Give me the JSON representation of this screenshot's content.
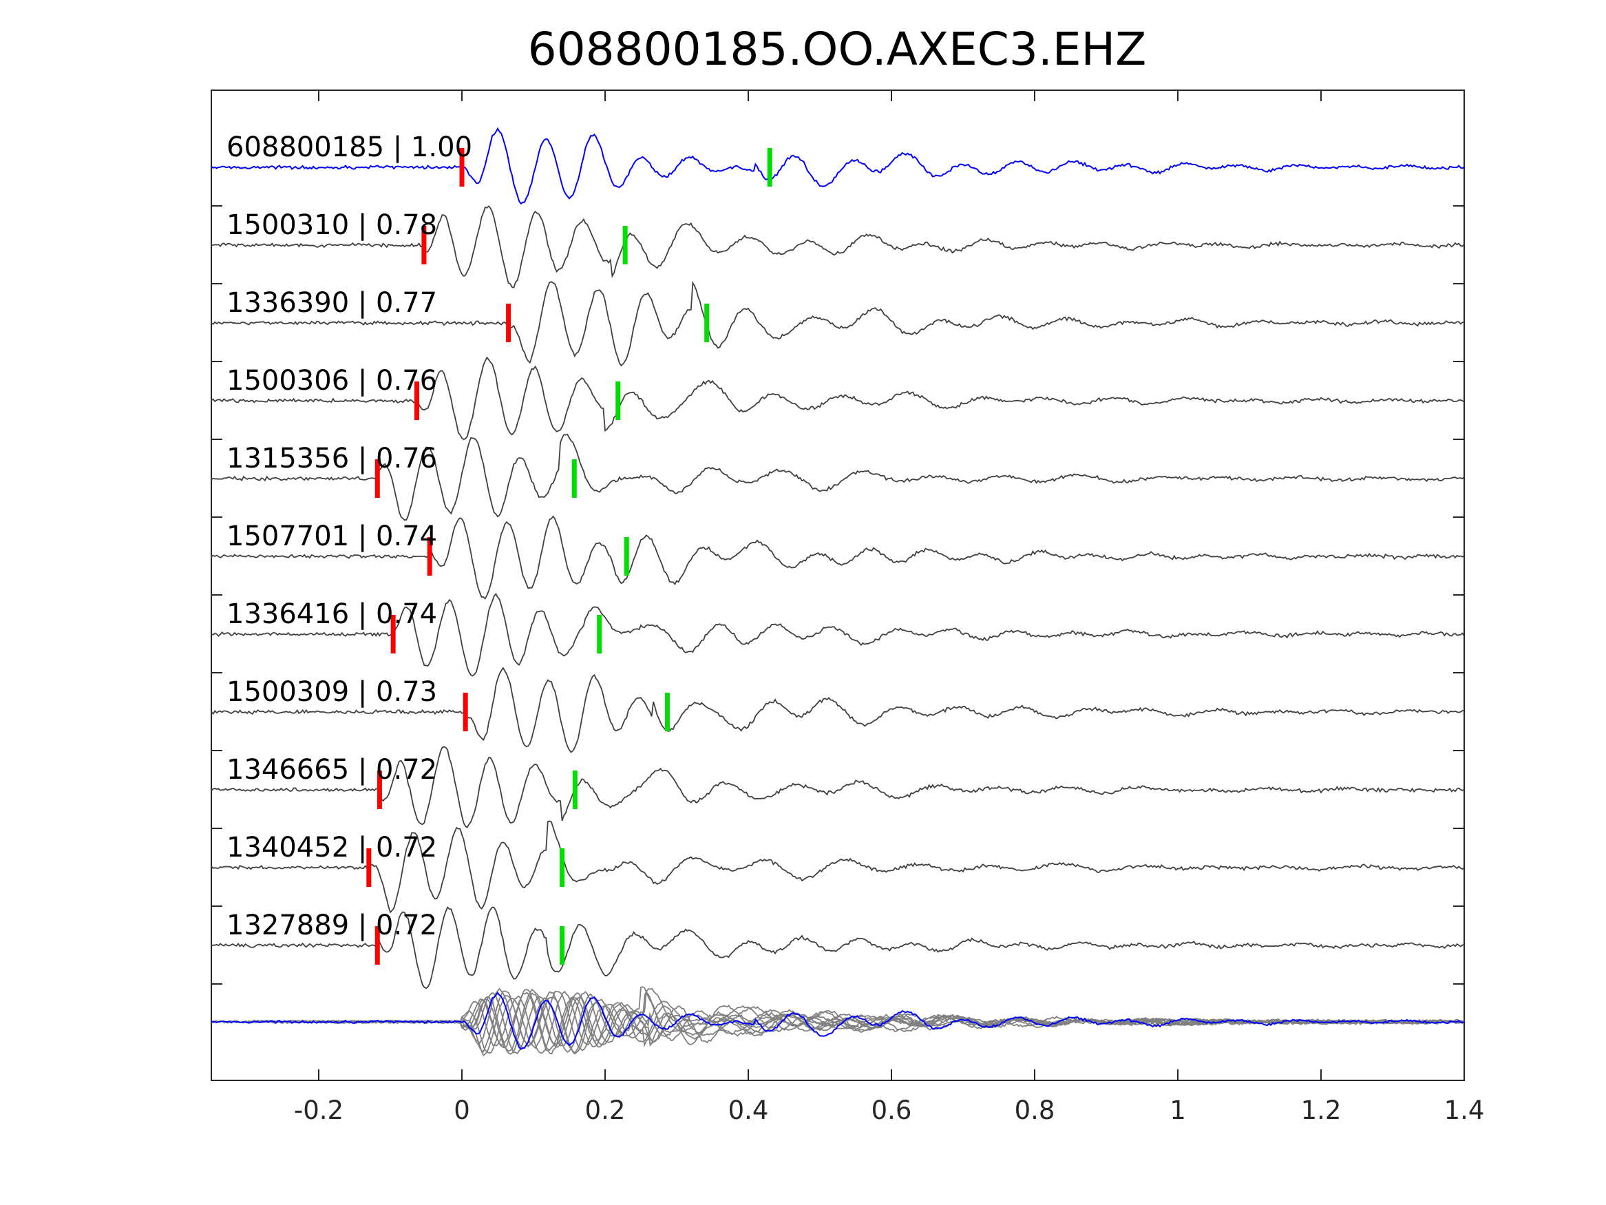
{
  "chart_data": {
    "type": "line",
    "title": "608800185.OO.AXEC3.EHZ",
    "xlabel": "",
    "ylabel": "",
    "xlim": [
      -0.35,
      1.4
    ],
    "xticks": [
      -0.2,
      0,
      0.2,
      0.4,
      0.6,
      0.8,
      1,
      1.2,
      1.4
    ],
    "xtick_labels": [
      "-0.2",
      "0",
      "0.2",
      "0.4",
      "0.6",
      "0.8",
      "1",
      "1.2",
      "1.4"
    ],
    "grid": false,
    "colors": {
      "reference": "#0000ff",
      "trace": "#404040",
      "stack": "#808080",
      "p_pick": "#ff0000",
      "s_pick": "#00dd00",
      "axis": "#262626"
    },
    "series": [
      {
        "label": "608800185 | 1.00",
        "p_pick": 0.0,
        "s_pick": 0.43,
        "reference": true
      },
      {
        "label": "1500310 | 0.78",
        "p_pick": -0.053,
        "s_pick": 0.228
      },
      {
        "label": "1336390 | 0.77",
        "p_pick": 0.065,
        "s_pick": 0.342
      },
      {
        "label": "1500306 | 0.76",
        "p_pick": -0.063,
        "s_pick": 0.218
      },
      {
        "label": "1315356 | 0.76",
        "p_pick": -0.118,
        "s_pick": 0.157
      },
      {
        "label": "1507701 | 0.74",
        "p_pick": -0.045,
        "s_pick": 0.23
      },
      {
        "label": "1336416 | 0.74",
        "p_pick": -0.096,
        "s_pick": 0.192
      },
      {
        "label": "1500309 | 0.73",
        "p_pick": 0.005,
        "s_pick": 0.287
      },
      {
        "label": "1346665 | 0.72",
        "p_pick": -0.115,
        "s_pick": 0.158
      },
      {
        "label": "1340452 | 0.72",
        "p_pick": -0.13,
        "s_pick": 0.14
      },
      {
        "label": "1327889 | 0.72",
        "p_pick": -0.118,
        "s_pick": 0.14
      }
    ]
  }
}
